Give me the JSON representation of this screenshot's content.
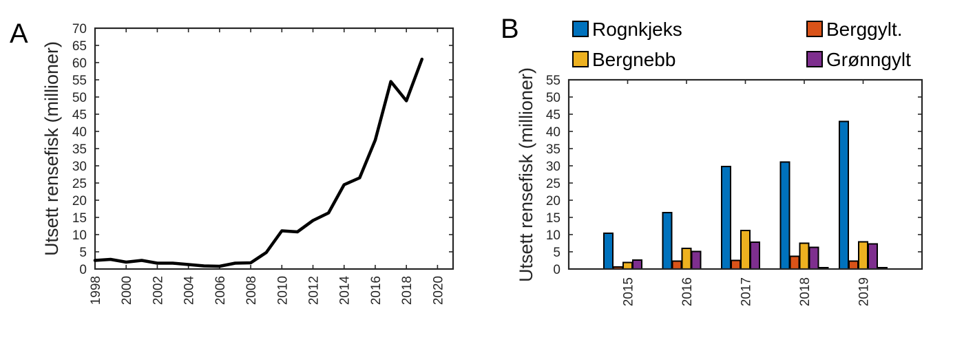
{
  "panels": {
    "a": {
      "label": "A"
    },
    "b": {
      "label": "B"
    }
  },
  "chart_data": [
    {
      "type": "line",
      "panel": "A",
      "ylabel": "Utsett rensefisk (millioner)",
      "xlabel": "",
      "xlim": [
        1998,
        2021
      ],
      "ylim": [
        0,
        70
      ],
      "xticks": [
        "1998",
        "2000",
        "2002",
        "2004",
        "2006",
        "2008",
        "2010",
        "2012",
        "2014",
        "2016",
        "2018",
        "2020"
      ],
      "yticks": [
        "0",
        "5",
        "10",
        "15",
        "20",
        "25",
        "30",
        "35",
        "40",
        "45",
        "50",
        "55",
        "60",
        "65",
        "70"
      ],
      "color": "#000000",
      "x": [
        1998,
        1999,
        2000,
        2001,
        2002,
        2003,
        2004,
        2005,
        2006,
        2007,
        2008,
        2009,
        2010,
        2011,
        2012,
        2013,
        2014,
        2015,
        2016,
        2017,
        2018,
        2019
      ],
      "y": [
        2.5,
        2.8,
        2.0,
        2.5,
        1.7,
        1.7,
        1.3,
        0.9,
        0.8,
        1.7,
        1.8,
        4.8,
        11.1,
        10.8,
        14.1,
        16.3,
        24.5,
        26.5,
        37.5,
        54.5,
        48.9,
        61.0
      ]
    },
    {
      "type": "bar",
      "panel": "B",
      "ylabel": "Utsett rensefisk (millioner)",
      "xlabel": "",
      "ylim": [
        0,
        55
      ],
      "yticks": [
        "0",
        "5",
        "10",
        "15",
        "20",
        "25",
        "30",
        "35",
        "40",
        "45",
        "50",
        "55"
      ],
      "categories": [
        "2015",
        "2016",
        "2017",
        "2018",
        "2019"
      ],
      "legend_position": "top",
      "series": [
        {
          "name": "Rognkjeks",
          "color": "#0072BD",
          "values": [
            10.4,
            16.4,
            29.8,
            31.1,
            42.9
          ]
        },
        {
          "name": "Berggylt.",
          "color": "#D95319",
          "values": [
            0.6,
            2.3,
            2.5,
            3.7,
            2.3
          ]
        },
        {
          "name": "Bergnebb",
          "color": "#EDB120",
          "values": [
            1.9,
            6.0,
            11.2,
            7.5,
            7.9
          ]
        },
        {
          "name": "Grønngylt",
          "color": "#7E2F8E",
          "values": [
            2.6,
            5.1,
            7.8,
            6.3,
            7.3
          ]
        },
        {
          "name": "",
          "color": "#77AC30",
          "values": [
            0,
            0,
            0,
            0.4,
            0.4
          ]
        }
      ]
    }
  ]
}
